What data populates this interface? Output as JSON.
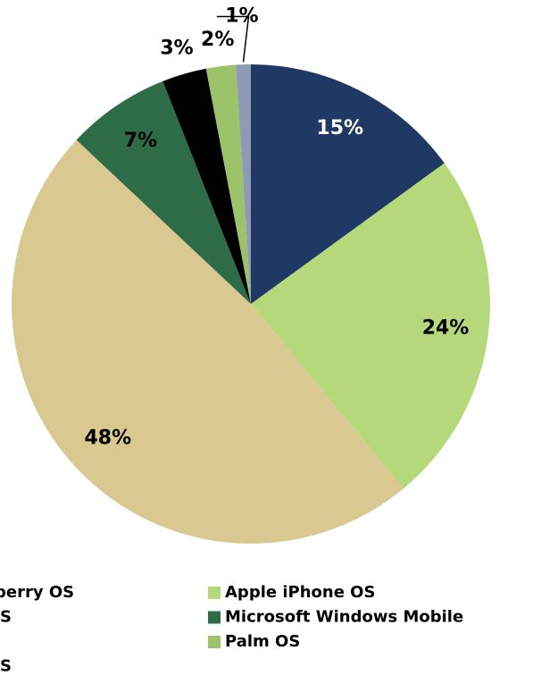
{
  "chart_data": {
    "type": "pie",
    "categories": [
      "berry OS",
      "Apple iPhone OS",
      "S",
      "Microsoft Windows Mobile",
      null,
      "Palm OS",
      "S"
    ],
    "values": [
      15,
      24,
      48,
      7,
      3,
      2,
      1
    ],
    "value_labels": [
      "15%",
      "24%",
      "48%",
      "7%",
      "3%",
      "2%",
      "1%"
    ],
    "colors": [
      "#1f3864",
      "#b4d87a",
      "#d9c991",
      "#2e6b47",
      "#000000",
      "#9cc26a",
      "#8e9bb5"
    ],
    "legend": "bottom"
  }
}
